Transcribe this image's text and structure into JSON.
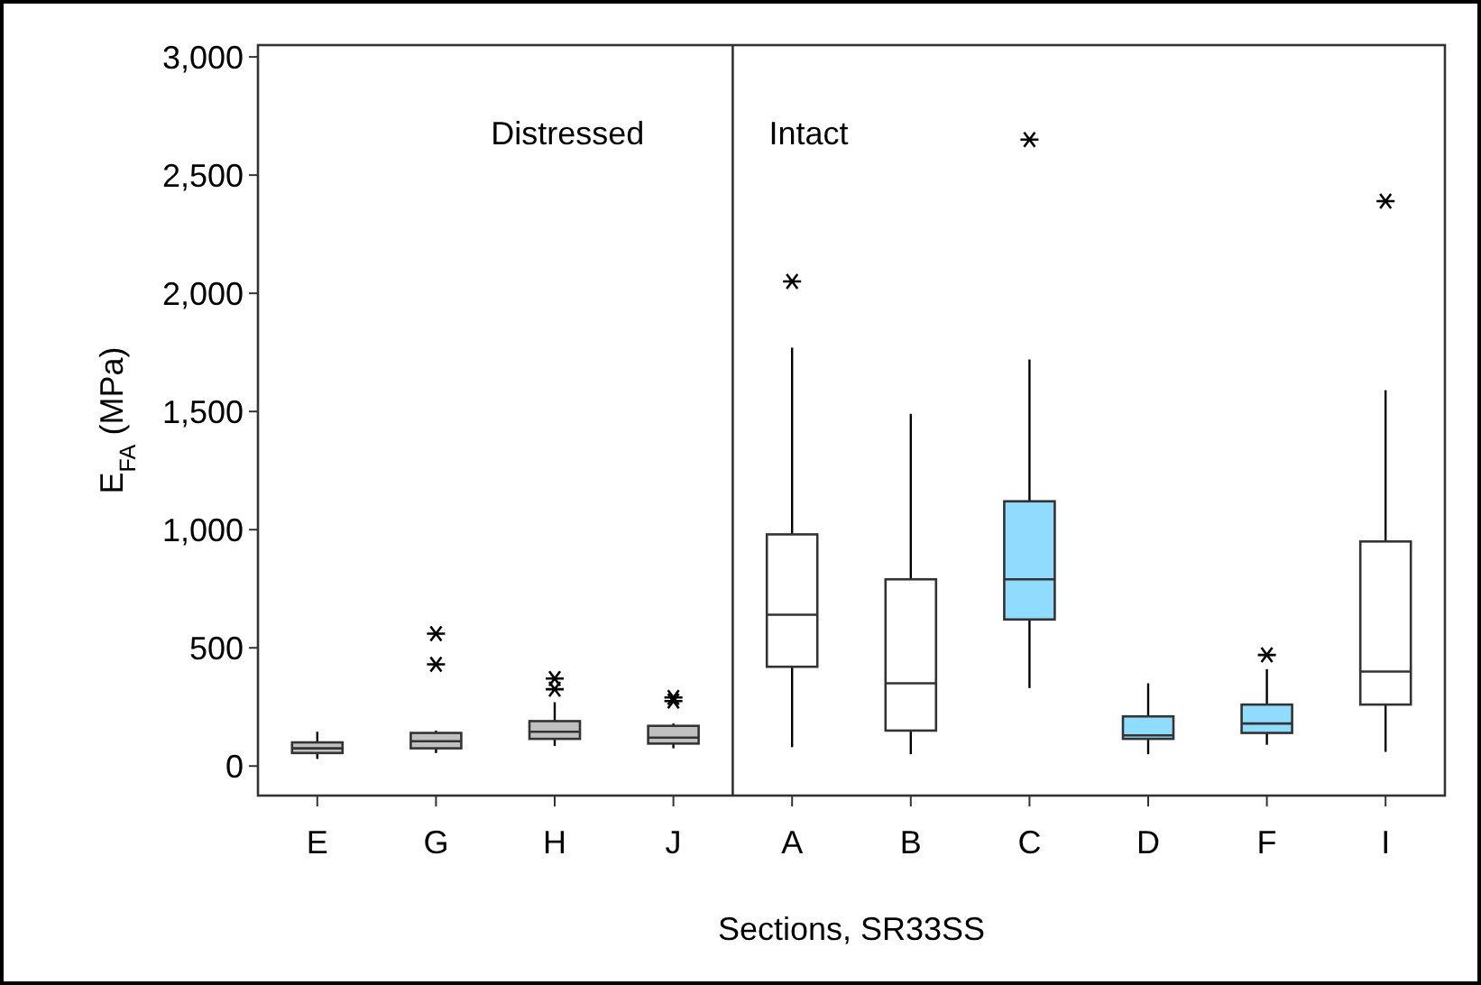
{
  "chart_data": {
    "type": "box",
    "xlabel": "Sections, SR33SS",
    "ylabel": "E$_{FA}$ (MPa)",
    "categories": [
      "E",
      "G",
      "H",
      "J",
      "A",
      "B",
      "C",
      "D",
      "F",
      "I"
    ],
    "colors": [
      "#c0c0c0",
      "#c0c0c0",
      "#c0c0c0",
      "#c0c0c0",
      "#ffffff",
      "#ffffff",
      "#8fdcff",
      "#8fdcff",
      "#8fdcff",
      "#ffffff"
    ],
    "boxes": [
      {
        "low": 30,
        "q1": 55,
        "median": 75,
        "q3": 100,
        "high": 145
      },
      {
        "low": 55,
        "q1": 75,
        "median": 105,
        "q3": 140,
        "high": 150,
        "outliers": [
          430,
          560
        ]
      },
      {
        "low": 85,
        "q1": 115,
        "median": 145,
        "q3": 190,
        "high": 270,
        "outliers": [
          325,
          370
        ]
      },
      {
        "low": 75,
        "q1": 95,
        "median": 120,
        "q3": 170,
        "high": 180,
        "outliers": [
          275,
          290
        ]
      },
      {
        "low": 80,
        "q1": 420,
        "median": 640,
        "q3": 980,
        "high": 1770,
        "outliers": [
          2050
        ]
      },
      {
        "low": 50,
        "q1": 150,
        "median": 350,
        "q3": 790,
        "high": 1490
      },
      {
        "low": 330,
        "q1": 620,
        "median": 790,
        "q3": 1120,
        "high": 1720,
        "outliers": [
          2650
        ]
      },
      {
        "low": 50,
        "q1": 115,
        "median": 130,
        "q3": 210,
        "high": 350
      },
      {
        "low": 90,
        "q1": 140,
        "median": 180,
        "q3": 260,
        "high": 410,
        "outliers": [
          470
        ]
      },
      {
        "low": 60,
        "q1": 260,
        "median": 400,
        "q3": 950,
        "high": 1590,
        "outliers": [
          2390
        ]
      }
    ],
    "ylim": [
      -125,
      3050
    ],
    "yticks": [
      {
        "value": 0,
        "label": "0"
      },
      {
        "value": 500,
        "label": "500"
      },
      {
        "value": 1000,
        "label": "1,000"
      },
      {
        "value": 1500,
        "label": "1,500"
      },
      {
        "value": 2000,
        "label": "2,000"
      },
      {
        "value": 2500,
        "label": "2,500"
      },
      {
        "value": 3000,
        "label": "3,000"
      }
    ],
    "marker": "star",
    "annotations": [
      "Distressed",
      "Intact"
    ]
  }
}
